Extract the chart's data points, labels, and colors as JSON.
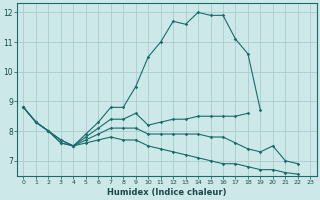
{
  "title": "",
  "xlabel": "Humidex (Indice chaleur)",
  "bg_color": "#cce8e8",
  "grid_color": "#aacccc",
  "line_color": "#1a6b6b",
  "xlim": [
    -0.5,
    23.5
  ],
  "ylim": [
    6.5,
    12.3
  ],
  "xticks": [
    0,
    1,
    2,
    3,
    4,
    5,
    6,
    7,
    8,
    9,
    10,
    11,
    12,
    13,
    14,
    15,
    16,
    17,
    18,
    19,
    20,
    21,
    22,
    23
  ],
  "yticks": [
    7,
    8,
    9,
    10,
    11,
    12
  ],
  "lines": [
    {
      "x": [
        0,
        1,
        2,
        3,
        4,
        5,
        6,
        7,
        8,
        9,
        10,
        11,
        12,
        13,
        14,
        15,
        16,
        17,
        18,
        19
      ],
      "y": [
        8.8,
        8.3,
        8.0,
        7.7,
        7.5,
        7.9,
        8.3,
        8.8,
        8.8,
        9.5,
        10.5,
        11.0,
        11.7,
        11.6,
        12.0,
        11.9,
        11.9,
        11.1,
        10.6,
        8.7
      ]
    },
    {
      "x": [
        0,
        1,
        2,
        3,
        4,
        5,
        6,
        7,
        8,
        9,
        10,
        11,
        12,
        13,
        14,
        15,
        16,
        17,
        18
      ],
      "y": [
        8.8,
        8.3,
        8.0,
        7.7,
        7.5,
        7.8,
        8.1,
        8.4,
        8.4,
        8.6,
        8.2,
        8.3,
        8.4,
        8.4,
        8.5,
        8.5,
        8.5,
        8.5,
        8.6
      ]
    },
    {
      "x": [
        0,
        1,
        2,
        3,
        4,
        5,
        6,
        7,
        8,
        9,
        10,
        11,
        12,
        13,
        14,
        15,
        16,
        17,
        18,
        19,
        20,
        21,
        22
      ],
      "y": [
        8.8,
        8.3,
        8.0,
        7.6,
        7.5,
        7.7,
        7.9,
        8.1,
        8.1,
        8.1,
        7.9,
        7.9,
        7.9,
        7.9,
        7.9,
        7.8,
        7.8,
        7.6,
        7.4,
        7.3,
        7.5,
        7.0,
        6.9
      ]
    },
    {
      "x": [
        0,
        1,
        2,
        3,
        4,
        5,
        6,
        7,
        8,
        9,
        10,
        11,
        12,
        13,
        14,
        15,
        16,
        17,
        18,
        19,
        20,
        21,
        22
      ],
      "y": [
        8.8,
        8.3,
        8.0,
        7.6,
        7.5,
        7.6,
        7.7,
        7.8,
        7.7,
        7.7,
        7.5,
        7.4,
        7.3,
        7.2,
        7.1,
        7.0,
        6.9,
        6.9,
        6.8,
        6.7,
        6.7,
        6.6,
        6.55
      ]
    }
  ]
}
